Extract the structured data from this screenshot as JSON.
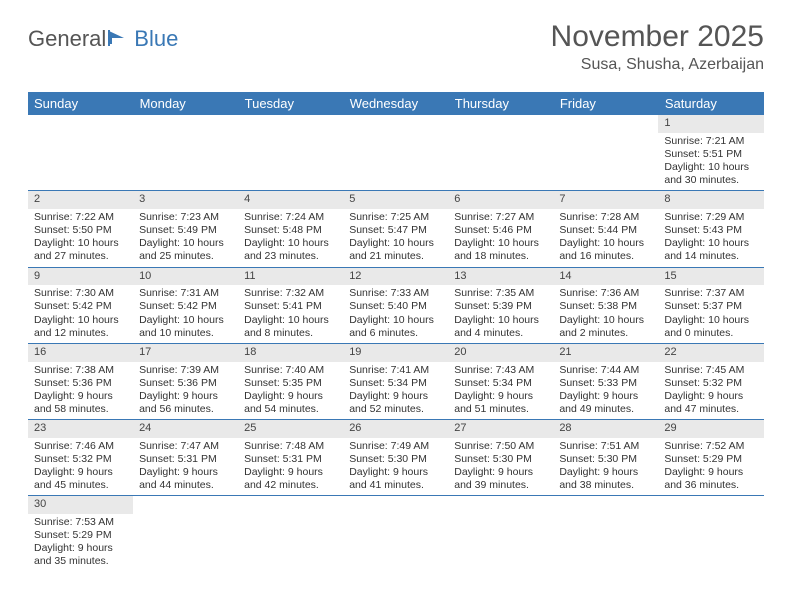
{
  "logo": {
    "general": "General",
    "blue": "Blue"
  },
  "title": "November 2025",
  "location": "Susa, Shusha, Azerbaijan",
  "colors": {
    "header_bg": "#3a78b5",
    "header_text": "#ffffff",
    "daynum_bg": "#e9e9e9",
    "border": "#3a78b5",
    "text": "#333333"
  },
  "weekdays": [
    "Sunday",
    "Monday",
    "Tuesday",
    "Wednesday",
    "Thursday",
    "Friday",
    "Saturday"
  ],
  "weeks": [
    [
      null,
      null,
      null,
      null,
      null,
      null,
      {
        "n": "1",
        "sr": "Sunrise: 7:21 AM",
        "ss": "Sunset: 5:51 PM",
        "d1": "Daylight: 10 hours",
        "d2": "and 30 minutes."
      }
    ],
    [
      {
        "n": "2",
        "sr": "Sunrise: 7:22 AM",
        "ss": "Sunset: 5:50 PM",
        "d1": "Daylight: 10 hours",
        "d2": "and 27 minutes."
      },
      {
        "n": "3",
        "sr": "Sunrise: 7:23 AM",
        "ss": "Sunset: 5:49 PM",
        "d1": "Daylight: 10 hours",
        "d2": "and 25 minutes."
      },
      {
        "n": "4",
        "sr": "Sunrise: 7:24 AM",
        "ss": "Sunset: 5:48 PM",
        "d1": "Daylight: 10 hours",
        "d2": "and 23 minutes."
      },
      {
        "n": "5",
        "sr": "Sunrise: 7:25 AM",
        "ss": "Sunset: 5:47 PM",
        "d1": "Daylight: 10 hours",
        "d2": "and 21 minutes."
      },
      {
        "n": "6",
        "sr": "Sunrise: 7:27 AM",
        "ss": "Sunset: 5:46 PM",
        "d1": "Daylight: 10 hours",
        "d2": "and 18 minutes."
      },
      {
        "n": "7",
        "sr": "Sunrise: 7:28 AM",
        "ss": "Sunset: 5:44 PM",
        "d1": "Daylight: 10 hours",
        "d2": "and 16 minutes."
      },
      {
        "n": "8",
        "sr": "Sunrise: 7:29 AM",
        "ss": "Sunset: 5:43 PM",
        "d1": "Daylight: 10 hours",
        "d2": "and 14 minutes."
      }
    ],
    [
      {
        "n": "9",
        "sr": "Sunrise: 7:30 AM",
        "ss": "Sunset: 5:42 PM",
        "d1": "Daylight: 10 hours",
        "d2": "and 12 minutes."
      },
      {
        "n": "10",
        "sr": "Sunrise: 7:31 AM",
        "ss": "Sunset: 5:42 PM",
        "d1": "Daylight: 10 hours",
        "d2": "and 10 minutes."
      },
      {
        "n": "11",
        "sr": "Sunrise: 7:32 AM",
        "ss": "Sunset: 5:41 PM",
        "d1": "Daylight: 10 hours",
        "d2": "and 8 minutes."
      },
      {
        "n": "12",
        "sr": "Sunrise: 7:33 AM",
        "ss": "Sunset: 5:40 PM",
        "d1": "Daylight: 10 hours",
        "d2": "and 6 minutes."
      },
      {
        "n": "13",
        "sr": "Sunrise: 7:35 AM",
        "ss": "Sunset: 5:39 PM",
        "d1": "Daylight: 10 hours",
        "d2": "and 4 minutes."
      },
      {
        "n": "14",
        "sr": "Sunrise: 7:36 AM",
        "ss": "Sunset: 5:38 PM",
        "d1": "Daylight: 10 hours",
        "d2": "and 2 minutes."
      },
      {
        "n": "15",
        "sr": "Sunrise: 7:37 AM",
        "ss": "Sunset: 5:37 PM",
        "d1": "Daylight: 10 hours",
        "d2": "and 0 minutes."
      }
    ],
    [
      {
        "n": "16",
        "sr": "Sunrise: 7:38 AM",
        "ss": "Sunset: 5:36 PM",
        "d1": "Daylight: 9 hours",
        "d2": "and 58 minutes."
      },
      {
        "n": "17",
        "sr": "Sunrise: 7:39 AM",
        "ss": "Sunset: 5:36 PM",
        "d1": "Daylight: 9 hours",
        "d2": "and 56 minutes."
      },
      {
        "n": "18",
        "sr": "Sunrise: 7:40 AM",
        "ss": "Sunset: 5:35 PM",
        "d1": "Daylight: 9 hours",
        "d2": "and 54 minutes."
      },
      {
        "n": "19",
        "sr": "Sunrise: 7:41 AM",
        "ss": "Sunset: 5:34 PM",
        "d1": "Daylight: 9 hours",
        "d2": "and 52 minutes."
      },
      {
        "n": "20",
        "sr": "Sunrise: 7:43 AM",
        "ss": "Sunset: 5:34 PM",
        "d1": "Daylight: 9 hours",
        "d2": "and 51 minutes."
      },
      {
        "n": "21",
        "sr": "Sunrise: 7:44 AM",
        "ss": "Sunset: 5:33 PM",
        "d1": "Daylight: 9 hours",
        "d2": "and 49 minutes."
      },
      {
        "n": "22",
        "sr": "Sunrise: 7:45 AM",
        "ss": "Sunset: 5:32 PM",
        "d1": "Daylight: 9 hours",
        "d2": "and 47 minutes."
      }
    ],
    [
      {
        "n": "23",
        "sr": "Sunrise: 7:46 AM",
        "ss": "Sunset: 5:32 PM",
        "d1": "Daylight: 9 hours",
        "d2": "and 45 minutes."
      },
      {
        "n": "24",
        "sr": "Sunrise: 7:47 AM",
        "ss": "Sunset: 5:31 PM",
        "d1": "Daylight: 9 hours",
        "d2": "and 44 minutes."
      },
      {
        "n": "25",
        "sr": "Sunrise: 7:48 AM",
        "ss": "Sunset: 5:31 PM",
        "d1": "Daylight: 9 hours",
        "d2": "and 42 minutes."
      },
      {
        "n": "26",
        "sr": "Sunrise: 7:49 AM",
        "ss": "Sunset: 5:30 PM",
        "d1": "Daylight: 9 hours",
        "d2": "and 41 minutes."
      },
      {
        "n": "27",
        "sr": "Sunrise: 7:50 AM",
        "ss": "Sunset: 5:30 PM",
        "d1": "Daylight: 9 hours",
        "d2": "and 39 minutes."
      },
      {
        "n": "28",
        "sr": "Sunrise: 7:51 AM",
        "ss": "Sunset: 5:30 PM",
        "d1": "Daylight: 9 hours",
        "d2": "and 38 minutes."
      },
      {
        "n": "29",
        "sr": "Sunrise: 7:52 AM",
        "ss": "Sunset: 5:29 PM",
        "d1": "Daylight: 9 hours",
        "d2": "and 36 minutes."
      }
    ],
    [
      {
        "n": "30",
        "sr": "Sunrise: 7:53 AM",
        "ss": "Sunset: 5:29 PM",
        "d1": "Daylight: 9 hours",
        "d2": "and 35 minutes."
      },
      null,
      null,
      null,
      null,
      null,
      null
    ]
  ]
}
